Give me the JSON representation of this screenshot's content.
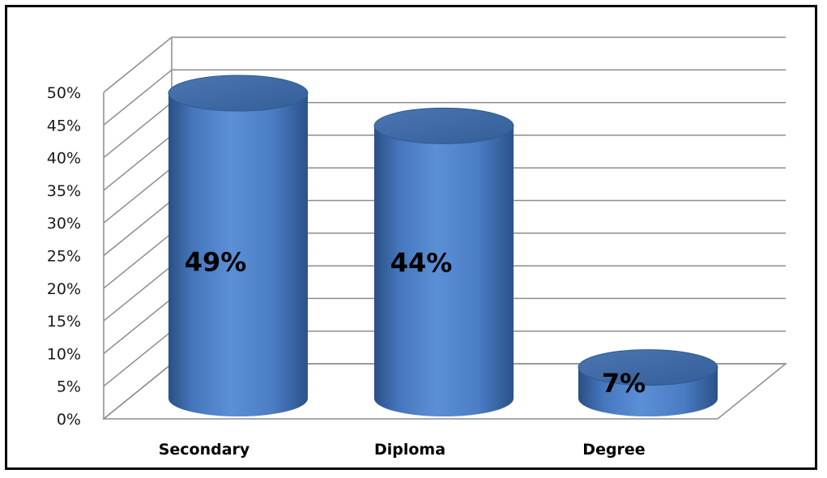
{
  "chart_data": {
    "type": "bar",
    "style": "3d-cylinder",
    "categories": [
      "Secondary",
      "Diploma",
      "Degree"
    ],
    "values": [
      49,
      44,
      7
    ],
    "data_labels": [
      "49%",
      "44%",
      "7%"
    ],
    "y_ticks": [
      "0%",
      "5%",
      "10%",
      "15%",
      "20%",
      "25%",
      "30%",
      "35%",
      "40%",
      "45%",
      "50%"
    ],
    "ylim": [
      0,
      50
    ],
    "grid": true,
    "legend": "none",
    "title": "",
    "xlabel": "",
    "ylabel": "",
    "colors": {
      "bar_light": "#5b8fd6",
      "bar_mid": "#4a7dc4",
      "bar_dark": "#2e5a93",
      "bar_top": "#3f6aa6",
      "grid": "#8c8c8c"
    }
  }
}
